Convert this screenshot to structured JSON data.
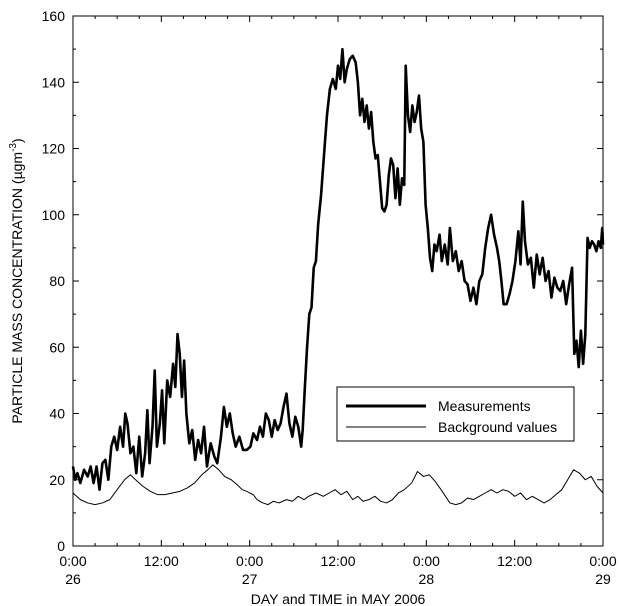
{
  "chart_data": {
    "type": "line",
    "title": "",
    "xlabel": "DAY and TIME in MAY 2006",
    "ylabel": "PARTICLE MASS CONCENTRATION (µgm⁻³)",
    "ylabel_main": "PARTICLE MASS CONCENTRATION (µgm",
    "ylabel_sup": "-3",
    "ylabel_tail": ")",
    "xlim": [
      0,
      72
    ],
    "ylim": [
      0,
      160
    ],
    "x_unit": "hours since 00:00 on 26 May 2006",
    "x_ticks": [
      {
        "x": 0,
        "time": "0:00",
        "day": "26"
      },
      {
        "x": 12,
        "time": "12:00",
        "day": ""
      },
      {
        "x": 24,
        "time": "0:00",
        "day": "27"
      },
      {
        "x": 36,
        "time": "12:00",
        "day": ""
      },
      {
        "x": 48,
        "time": "0:00",
        "day": "28"
      },
      {
        "x": 60,
        "time": "12:00",
        "day": ""
      },
      {
        "x": 72,
        "time": "0:00",
        "day": "29"
      }
    ],
    "y_ticks": [
      0,
      20,
      40,
      60,
      80,
      100,
      120,
      140,
      160
    ],
    "grid": false,
    "legend_position": "lower-right",
    "series": [
      {
        "name": "Measurements",
        "color": "#000000",
        "line_style": "thick",
        "points": [
          [
            0,
            24
          ],
          [
            0.3,
            20
          ],
          [
            0.6,
            22
          ],
          [
            1,
            19
          ],
          [
            1.5,
            23
          ],
          [
            2,
            21
          ],
          [
            2.4,
            24
          ],
          [
            2.8,
            19
          ],
          [
            3.2,
            24
          ],
          [
            3.6,
            17
          ],
          [
            4,
            25
          ],
          [
            4.4,
            26
          ],
          [
            4.8,
            20
          ],
          [
            5.2,
            30
          ],
          [
            5.6,
            33
          ],
          [
            6,
            29
          ],
          [
            6.4,
            36
          ],
          [
            6.8,
            30
          ],
          [
            7.1,
            40
          ],
          [
            7.4,
            37
          ],
          [
            7.8,
            28
          ],
          [
            8.2,
            30
          ],
          [
            8.6,
            22
          ],
          [
            9,
            33
          ],
          [
            9.4,
            21
          ],
          [
            9.8,
            28
          ],
          [
            10.1,
            41
          ],
          [
            10.4,
            25
          ],
          [
            10.8,
            36
          ],
          [
            11.1,
            53
          ],
          [
            11.4,
            30
          ],
          [
            11.8,
            37
          ],
          [
            12.1,
            47
          ],
          [
            12.4,
            31
          ],
          [
            12.8,
            50
          ],
          [
            13.2,
            45
          ],
          [
            13.6,
            55
          ],
          [
            13.9,
            48
          ],
          [
            14.2,
            64
          ],
          [
            14.5,
            58
          ],
          [
            14.8,
            45
          ],
          [
            15.1,
            56
          ],
          [
            15.4,
            40
          ],
          [
            15.8,
            31
          ],
          [
            16.2,
            35
          ],
          [
            16.6,
            26
          ],
          [
            17,
            32
          ],
          [
            17.4,
            28
          ],
          [
            17.8,
            36
          ],
          [
            18.2,
            24
          ],
          [
            18.7,
            31
          ],
          [
            19.2,
            27
          ],
          [
            19.6,
            25
          ],
          [
            20.1,
            33
          ],
          [
            20.5,
            42
          ],
          [
            20.9,
            36
          ],
          [
            21.3,
            40
          ],
          [
            21.7,
            34
          ],
          [
            22.1,
            30
          ],
          [
            22.6,
            33
          ],
          [
            23.1,
            29
          ],
          [
            23.6,
            29
          ],
          [
            24.1,
            30
          ],
          [
            24.5,
            34
          ],
          [
            25,
            32
          ],
          [
            25.4,
            36
          ],
          [
            25.8,
            33
          ],
          [
            26.2,
            40
          ],
          [
            26.6,
            38
          ],
          [
            27,
            33
          ],
          [
            27.4,
            38
          ],
          [
            27.8,
            35
          ],
          [
            28.2,
            37
          ],
          [
            28.6,
            42
          ],
          [
            29,
            46
          ],
          [
            29.4,
            37
          ],
          [
            29.8,
            33
          ],
          [
            30.2,
            39
          ],
          [
            30.6,
            36
          ],
          [
            31,
            30
          ],
          [
            31.2,
            35
          ],
          [
            31.5,
            48
          ],
          [
            31.8,
            60
          ],
          [
            32.1,
            70
          ],
          [
            32.4,
            72
          ],
          [
            32.7,
            84
          ],
          [
            33,
            86
          ],
          [
            33.3,
            97
          ],
          [
            33.7,
            106
          ],
          [
            34.1,
            118
          ],
          [
            34.5,
            130
          ],
          [
            34.9,
            138
          ],
          [
            35.3,
            141
          ],
          [
            35.7,
            138
          ],
          [
            36,
            145
          ],
          [
            36.3,
            141
          ],
          [
            36.6,
            150
          ],
          [
            36.9,
            140
          ],
          [
            37.2,
            144
          ],
          [
            37.6,
            147
          ],
          [
            38,
            148
          ],
          [
            38.4,
            146
          ],
          [
            38.7,
            140
          ],
          [
            39,
            130
          ],
          [
            39.3,
            135
          ],
          [
            39.6,
            128
          ],
          [
            39.9,
            133
          ],
          [
            40.2,
            126
          ],
          [
            40.5,
            131
          ],
          [
            40.8,
            122
          ],
          [
            41.1,
            117
          ],
          [
            41.4,
            118
          ],
          [
            41.7,
            110
          ],
          [
            42,
            102
          ],
          [
            42.3,
            101
          ],
          [
            42.6,
            103
          ],
          [
            42.9,
            112
          ],
          [
            43.2,
            117
          ],
          [
            43.5,
            115
          ],
          [
            43.8,
            105
          ],
          [
            44.1,
            114
          ],
          [
            44.4,
            103
          ],
          [
            44.7,
            111
          ],
          [
            45,
            109
          ],
          [
            45.2,
            145
          ],
          [
            45.5,
            130
          ],
          [
            45.8,
            125
          ],
          [
            46.1,
            133
          ],
          [
            46.4,
            128
          ],
          [
            46.7,
            131
          ],
          [
            47,
            136
          ],
          [
            47.3,
            126
          ],
          [
            47.6,
            122
          ],
          [
            47.9,
            103
          ],
          [
            48.2,
            96
          ],
          [
            48.5,
            87
          ],
          [
            48.8,
            83
          ],
          [
            49.1,
            91
          ],
          [
            49.4,
            89
          ],
          [
            49.8,
            94
          ],
          [
            50.1,
            86
          ],
          [
            50.5,
            91
          ],
          [
            50.9,
            85
          ],
          [
            51.2,
            96
          ],
          [
            51.6,
            86
          ],
          [
            52,
            89
          ],
          [
            52.4,
            83
          ],
          [
            52.8,
            86
          ],
          [
            53.2,
            80
          ],
          [
            53.6,
            79
          ],
          [
            54,
            74
          ],
          [
            54.4,
            78
          ],
          [
            54.8,
            73
          ],
          [
            55.2,
            80
          ],
          [
            55.6,
            82
          ],
          [
            56,
            90
          ],
          [
            56.4,
            96
          ],
          [
            56.8,
            100
          ],
          [
            57.2,
            94
          ],
          [
            57.6,
            90
          ],
          [
            57.9,
            86
          ],
          [
            58.2,
            80
          ],
          [
            58.5,
            73
          ],
          [
            58.9,
            73
          ],
          [
            59.3,
            76
          ],
          [
            59.7,
            80
          ],
          [
            60.1,
            86
          ],
          [
            60.5,
            95
          ],
          [
            60.8,
            85
          ],
          [
            61.1,
            104
          ],
          [
            61.4,
            92
          ],
          [
            61.8,
            85
          ],
          [
            62.2,
            87
          ],
          [
            62.6,
            78
          ],
          [
            63,
            88
          ],
          [
            63.4,
            82
          ],
          [
            63.8,
            87
          ],
          [
            64.2,
            80
          ],
          [
            64.6,
            83
          ],
          [
            65,
            75
          ],
          [
            65.4,
            81
          ],
          [
            65.8,
            78
          ],
          [
            66.2,
            77
          ],
          [
            66.6,
            80
          ],
          [
            67,
            73
          ],
          [
            67.4,
            79
          ],
          [
            67.8,
            84
          ],
          [
            68.1,
            58
          ],
          [
            68.4,
            62
          ],
          [
            68.7,
            54
          ],
          [
            69,
            65
          ],
          [
            69.3,
            55
          ],
          [
            69.6,
            64
          ],
          [
            69.9,
            93
          ],
          [
            70.2,
            90
          ],
          [
            70.5,
            92
          ],
          [
            70.8,
            91
          ],
          [
            71.1,
            89
          ],
          [
            71.4,
            92
          ],
          [
            71.7,
            90
          ],
          [
            71.9,
            96
          ],
          [
            72,
            91
          ]
        ]
      },
      {
        "name": "Background values",
        "color": "#000000",
        "line_style": "thin",
        "points": [
          [
            0,
            16
          ],
          [
            1,
            14
          ],
          [
            2,
            13
          ],
          [
            3,
            12.5
          ],
          [
            4,
            13
          ],
          [
            5,
            14
          ],
          [
            6,
            17
          ],
          [
            7,
            20
          ],
          [
            7.8,
            21.5
          ],
          [
            8.5,
            20
          ],
          [
            9.5,
            18
          ],
          [
            10.5,
            16.5
          ],
          [
            11.5,
            15.5
          ],
          [
            12.5,
            15.5
          ],
          [
            13.5,
            16
          ],
          [
            14.5,
            16.5
          ],
          [
            15.5,
            17.5
          ],
          [
            16.5,
            19
          ],
          [
            17.5,
            21.5
          ],
          [
            18.3,
            23
          ],
          [
            19,
            24.5
          ],
          [
            19.8,
            23
          ],
          [
            20.6,
            21
          ],
          [
            21.5,
            20
          ],
          [
            22.3,
            18.5
          ],
          [
            23,
            17
          ],
          [
            23.6,
            16.5
          ],
          [
            24,
            16
          ],
          [
            24.5,
            15.5
          ],
          [
            25,
            14
          ],
          [
            25.8,
            13
          ],
          [
            26.5,
            12.5
          ],
          [
            27.2,
            13.5
          ],
          [
            28,
            13
          ],
          [
            29,
            14
          ],
          [
            29.8,
            13.5
          ],
          [
            30.6,
            15
          ],
          [
            31.4,
            14
          ],
          [
            32,
            15
          ],
          [
            33,
            16
          ],
          [
            34,
            15
          ],
          [
            34.8,
            16
          ],
          [
            35.6,
            17
          ],
          [
            36.4,
            15.5
          ],
          [
            37.2,
            16.5
          ],
          [
            38,
            14
          ],
          [
            38.7,
            15
          ],
          [
            39.4,
            13.5
          ],
          [
            40.2,
            14
          ],
          [
            41,
            15
          ],
          [
            41.8,
            13.5
          ],
          [
            42.6,
            13
          ],
          [
            43.4,
            14
          ],
          [
            44.2,
            16
          ],
          [
            45,
            17
          ],
          [
            46,
            19
          ],
          [
            46.8,
            22.5
          ],
          [
            47.6,
            21
          ],
          [
            48.4,
            21.5
          ],
          [
            49.2,
            19.5
          ],
          [
            50,
            17
          ],
          [
            50.6,
            15
          ],
          [
            51.2,
            13
          ],
          [
            52,
            12.5
          ],
          [
            52.8,
            13
          ],
          [
            53.6,
            14.5
          ],
          [
            54.4,
            14
          ],
          [
            55.2,
            15
          ],
          [
            56,
            16
          ],
          [
            56.8,
            17
          ],
          [
            57.6,
            16
          ],
          [
            58.4,
            17
          ],
          [
            59.2,
            16.5
          ],
          [
            60,
            15
          ],
          [
            60.8,
            16
          ],
          [
            61.6,
            14
          ],
          [
            62.4,
            15
          ],
          [
            63.2,
            14
          ],
          [
            64,
            13
          ],
          [
            64.8,
            14
          ],
          [
            65.6,
            15.5
          ],
          [
            66.4,
            17
          ],
          [
            67.2,
            20
          ],
          [
            68,
            23
          ],
          [
            68.8,
            22
          ],
          [
            69.6,
            20
          ],
          [
            70.4,
            21
          ],
          [
            71.2,
            18
          ],
          [
            72,
            16
          ]
        ]
      }
    ]
  }
}
